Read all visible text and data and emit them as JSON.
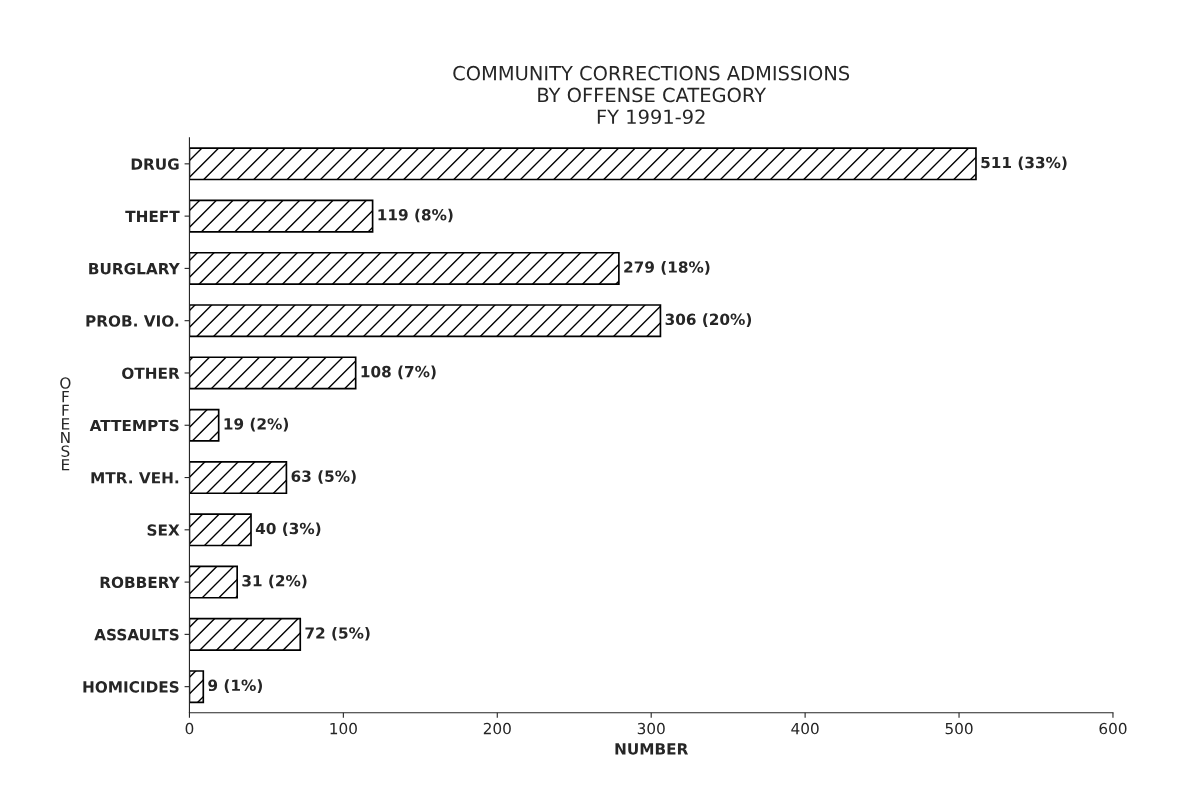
{
  "chart_data": {
    "type": "bar",
    "orientation": "horizontal",
    "title": "COMMUNITY CORRECTIONS ADMISSIONS\nBY OFFENSE CATEGORY\nFY 1991-92",
    "xlabel": "NUMBER",
    "ylabel": "OFFENSE",
    "categories": [
      "DRUG",
      "THEFT",
      "BURGLARY",
      "PROB. VIO.",
      "OTHER",
      "ATTEMPTS",
      "MTR. VEH.",
      "SEX",
      "ROBBERY",
      "ASSAULTS",
      "HOMICIDES"
    ],
    "values": [
      511,
      119,
      279,
      306,
      108,
      19,
      63,
      40,
      31,
      72,
      9
    ],
    "value_labels": [
      "511 (33%)",
      "119 (8%)",
      "279 (18%)",
      "306 (20%)",
      "108 (7%)",
      "19 (2%)",
      "63 (5%)",
      "40 (3%)",
      "31 (2%)",
      "72 (5%)",
      "9 (1%)"
    ],
    "color": "#000000",
    "xlim": [
      0,
      600
    ],
    "xticks": [
      0,
      100,
      200,
      300,
      400,
      500,
      600
    ],
    "grid": false,
    "legend": false
  }
}
